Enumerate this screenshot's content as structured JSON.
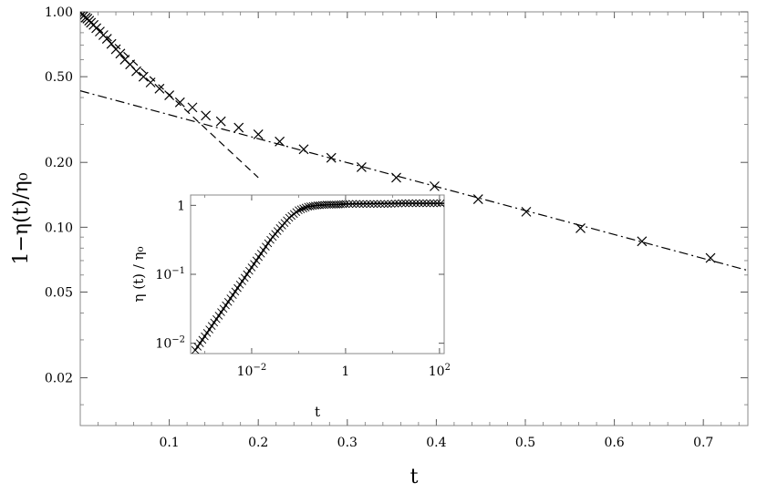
{
  "chart_data": [
    {
      "type": "scatter",
      "name": "main",
      "xlabel": "t",
      "ylabel": "1−η(t)/η₀",
      "y_scale": "log",
      "xlim": [
        0,
        0.75
      ],
      "ylim": [
        0.012,
        1.0
      ],
      "x_ticks": [
        {
          "value": 0.1,
          "label": "0.1"
        },
        {
          "value": 0.2,
          "label": "0.2"
        },
        {
          "value": 0.3,
          "label": "0.3"
        },
        {
          "value": 0.4,
          "label": "0.4"
        },
        {
          "value": 0.5,
          "label": "0.5"
        },
        {
          "value": 0.6,
          "label": "0.6"
        },
        {
          "value": 0.7,
          "label": "0.7"
        }
      ],
      "y_ticks": [
        {
          "value": 1.0,
          "label": "1.00"
        },
        {
          "value": 0.5,
          "label": "0.50"
        },
        {
          "value": 0.2,
          "label": "0.20"
        },
        {
          "value": 0.1,
          "label": "0.10"
        },
        {
          "value": 0.05,
          "label": "0.05"
        },
        {
          "value": 0.02,
          "label": "0.02"
        }
      ],
      "series": [
        {
          "marker": "x",
          "x": [
            0.002,
            0.004,
            0.006,
            0.008,
            0.01,
            0.012,
            0.015,
            0.018,
            0.022,
            0.026,
            0.03,
            0.035,
            0.04,
            0.045,
            0.05,
            0.056,
            0.063,
            0.071,
            0.079,
            0.089,
            0.1,
            0.112,
            0.126,
            0.141,
            0.158,
            0.178,
            0.2,
            0.224,
            0.251,
            0.282,
            0.316,
            0.355,
            0.398,
            0.447,
            0.501,
            0.562,
            0.631,
            0.708
          ],
          "y": [
            0.97,
            0.96,
            0.94,
            0.93,
            0.91,
            0.89,
            0.87,
            0.84,
            0.81,
            0.78,
            0.75,
            0.71,
            0.67,
            0.64,
            0.6,
            0.57,
            0.53,
            0.5,
            0.47,
            0.44,
            0.41,
            0.38,
            0.36,
            0.33,
            0.31,
            0.29,
            0.27,
            0.25,
            0.23,
            0.21,
            0.19,
            0.17,
            0.155,
            0.135,
            0.118,
            0.099,
            0.086,
            0.072
          ]
        },
        {
          "style": "dashed",
          "x": [
            0.0,
            0.2
          ],
          "y": [
            1.0,
            0.17
          ]
        },
        {
          "style": "dashdot",
          "x": [
            0.0,
            0.75
          ],
          "y": [
            0.43,
            0.063
          ]
        }
      ]
    },
    {
      "type": "scatter",
      "name": "inset",
      "xlabel": "t",
      "ylabel": "η (t) / η₀",
      "x_scale": "log",
      "y_scale": "log",
      "xlim_log10": [
        -3.3,
        2.1
      ],
      "ylim_log10": [
        -2.15,
        0.15
      ],
      "x_ticks": [
        {
          "value": 0.01,
          "base": "10",
          "exp": "−2"
        },
        {
          "value": 1,
          "base": "1",
          "exp": ""
        },
        {
          "value": 100,
          "base": "10",
          "exp": "2"
        }
      ],
      "y_ticks": [
        {
          "value": 1,
          "base": "1",
          "exp": ""
        },
        {
          "value": 0.1,
          "base": "10",
          "exp": "−1"
        },
        {
          "value": 0.01,
          "base": "10",
          "exp": "−2"
        }
      ],
      "series": [
        {
          "marker": "x",
          "note_log10_t_range": [
            -3.2,
            2.1
          ],
          "x_log10": [
            -3.2,
            -3.0,
            -2.8,
            -2.6,
            -2.4,
            -2.2,
            -2.0,
            -1.8,
            -1.6,
            -1.4,
            -1.2,
            -1.0,
            -0.8,
            -0.6,
            -0.4,
            -0.2,
            0.0,
            0.3,
            0.6,
            0.9,
            1.2,
            1.5,
            1.8,
            2.1
          ],
          "y_log10": [
            -2.1,
            -1.9,
            -1.7,
            -1.5,
            -1.3,
            -1.1,
            -0.9,
            -0.7,
            -0.5,
            -0.33,
            -0.18,
            -0.07,
            -0.02,
            0.0,
            0.01,
            0.01,
            0.02,
            0.02,
            0.02,
            0.02,
            0.03,
            0.03,
            0.03,
            0.03
          ]
        },
        {
          "style": "solid",
          "x_log10": [
            -3.2,
            -2.4,
            -1.6,
            -1.2,
            -1.0,
            -0.8,
            -0.6,
            -0.3,
            0.0,
            1.0,
            2.1
          ],
          "y_log10": [
            -2.1,
            -1.3,
            -0.5,
            -0.18,
            -0.07,
            -0.02,
            0.0,
            0.01,
            0.02,
            0.03,
            0.03
          ]
        }
      ]
    }
  ]
}
